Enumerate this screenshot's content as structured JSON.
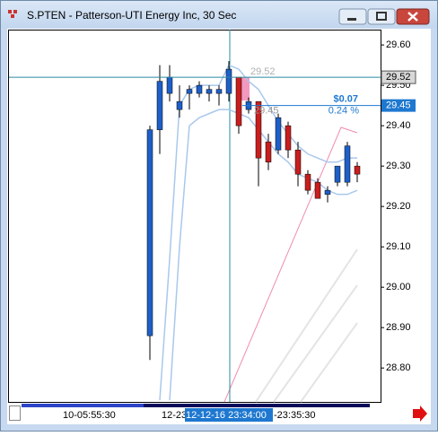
{
  "window": {
    "title": "S.PTEN - Patterson-UTI Energy Inc, 30 Sec"
  },
  "chart_data": {
    "type": "candlestick",
    "ylim": [
      28.716,
      29.638
    ],
    "yticks": [
      {
        "value": 29.6,
        "label": "29.60"
      },
      {
        "value": 29.5,
        "label": "29.50"
      },
      {
        "value": 29.4,
        "label": "29.40"
      },
      {
        "value": 29.3,
        "label": "29.30"
      },
      {
        "value": 29.2,
        "label": "29.20"
      },
      {
        "value": 29.1,
        "label": "29.10"
      },
      {
        "value": 29.0,
        "label": "29.00"
      },
      {
        "value": 28.9,
        "label": "28.90"
      },
      {
        "value": 28.8,
        "label": "28.80"
      }
    ],
    "open": [
      28.88,
      29.39,
      29.48,
      29.44,
      29.48,
      29.48,
      29.48,
      29.48,
      29.48,
      29.52,
      29.44,
      29.46,
      29.36,
      29.34,
      29.4,
      29.34,
      29.28,
      29.26,
      29.23,
      29.26,
      29.26,
      29.3
    ],
    "high": [
      29.4,
      29.55,
      29.55,
      29.5,
      29.5,
      29.51,
      29.5,
      29.5,
      29.56,
      29.52,
      29.47,
      29.46,
      29.38,
      29.43,
      29.41,
      29.36,
      29.29,
      29.27,
      29.25,
      29.3,
      29.36,
      29.31
    ],
    "low": [
      28.82,
      29.33,
      29.46,
      29.42,
      29.44,
      29.47,
      29.46,
      29.45,
      29.46,
      29.38,
      29.43,
      29.25,
      29.29,
      29.33,
      29.32,
      29.25,
      29.23,
      29.22,
      29.21,
      29.25,
      29.25,
      29.26
    ],
    "close": [
      29.39,
      29.51,
      29.52,
      29.46,
      29.49,
      29.5,
      29.49,
      29.49,
      29.54,
      29.4,
      29.46,
      29.32,
      29.31,
      29.42,
      29.34,
      29.28,
      29.24,
      29.22,
      29.24,
      29.3,
      29.35,
      29.28
    ],
    "up_color": "#1e5fc8",
    "down_color": "#c81e1e",
    "series": [
      {
        "values": [
          null,
          28.72,
          29.07,
          29.45,
          29.49,
          29.5,
          29.5,
          29.5,
          29.55,
          29.54,
          29.51,
          29.49,
          29.45,
          29.41,
          29.38,
          29.35,
          29.33,
          29.32,
          29.31,
          29.31,
          29.32,
          29.32
        ],
        "color": "#a9c8ec"
      },
      {
        "values": [
          null,
          null,
          28.72,
          29.1,
          29.4,
          29.42,
          29.43,
          29.44,
          29.44,
          29.43,
          29.42,
          29.39,
          29.36,
          29.33,
          29.31,
          29.28,
          29.27,
          29.26,
          29.24,
          29.23,
          29.23,
          29.24
        ],
        "color": "#a9c8ec"
      }
    ],
    "markers": [
      {
        "value": 29.52,
        "label": "29.52"
      },
      {
        "value": 29.45,
        "label": "29.45"
      }
    ],
    "annotations": [
      "$0.07",
      "0.24 %"
    ],
    "xlabels": [
      "10-05:55:30",
      "12-23",
      "12-12-16 23:34:00",
      "-23:35:30"
    ]
  }
}
